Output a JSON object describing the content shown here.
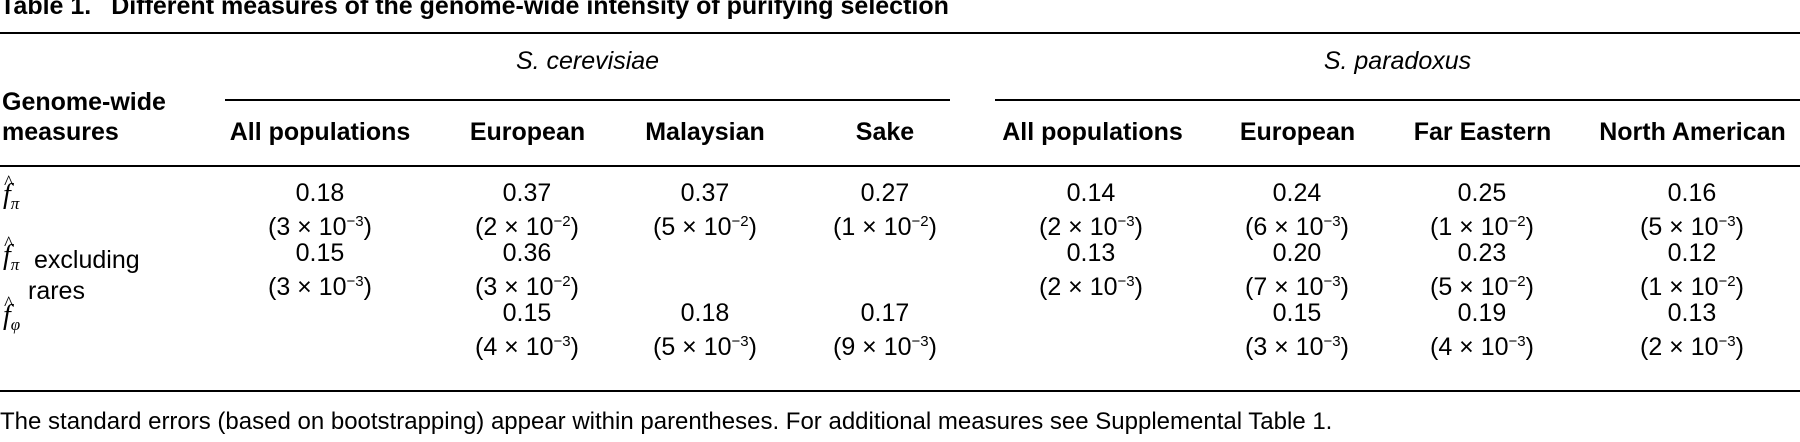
{
  "title": {
    "label": "Table 1.",
    "text": "Different measures of the genome-wide intensity of purifying selection"
  },
  "header": {
    "rowhead_line1": "Genome-wide",
    "rowhead_line2": "measures",
    "groups": [
      "S. cerevisiae",
      "S. paradoxus"
    ],
    "columns": [
      "All populations",
      "European",
      "Malaysian",
      "Sake",
      "All populations",
      "European",
      "Far Eastern",
      "North American"
    ]
  },
  "rows": [
    {
      "label_symbol": "f",
      "label_sub": "π",
      "label_extra": "",
      "label_extra2": "",
      "values": [
        "0.18",
        "0.37",
        "0.37",
        "0.27",
        "0.14",
        "0.24",
        "0.25",
        "0.16"
      ],
      "se_mantissa": [
        "3",
        "2",
        "5",
        "1",
        "2",
        "6",
        "1",
        "5"
      ],
      "se_exp": [
        "−3",
        "−2",
        "−2",
        "−2",
        "−3",
        "−3",
        "−2",
        "−3"
      ]
    },
    {
      "label_symbol": "f",
      "label_sub": "π",
      "label_extra": "excluding",
      "label_extra2": "rares",
      "values": [
        "0.15",
        "0.36",
        "",
        "",
        "0.13",
        "0.20",
        "0.23",
        "0.12"
      ],
      "se_mantissa": [
        "3",
        "3",
        "",
        "",
        "2",
        "7",
        "5",
        "1"
      ],
      "se_exp": [
        "−3",
        "−2",
        "",
        "",
        "−3",
        "−3",
        "−2",
        "−2"
      ]
    },
    {
      "label_symbol": "f",
      "label_sub": "φ",
      "label_extra": "",
      "label_extra2": "",
      "values": [
        "",
        "0.15",
        "0.18",
        "0.17",
        "",
        "0.15",
        "0.19",
        "0.13"
      ],
      "se_mantissa": [
        "",
        "4",
        "5",
        "9",
        "",
        "3",
        "4",
        "2"
      ],
      "se_exp": [
        "",
        "−3",
        "−3",
        "−3",
        "",
        "−3",
        "−3",
        "−3"
      ]
    }
  ],
  "footnote": "The standard errors (based on bootstrapping) appear within parentheses. For additional measures see Supplemental Table 1."
}
